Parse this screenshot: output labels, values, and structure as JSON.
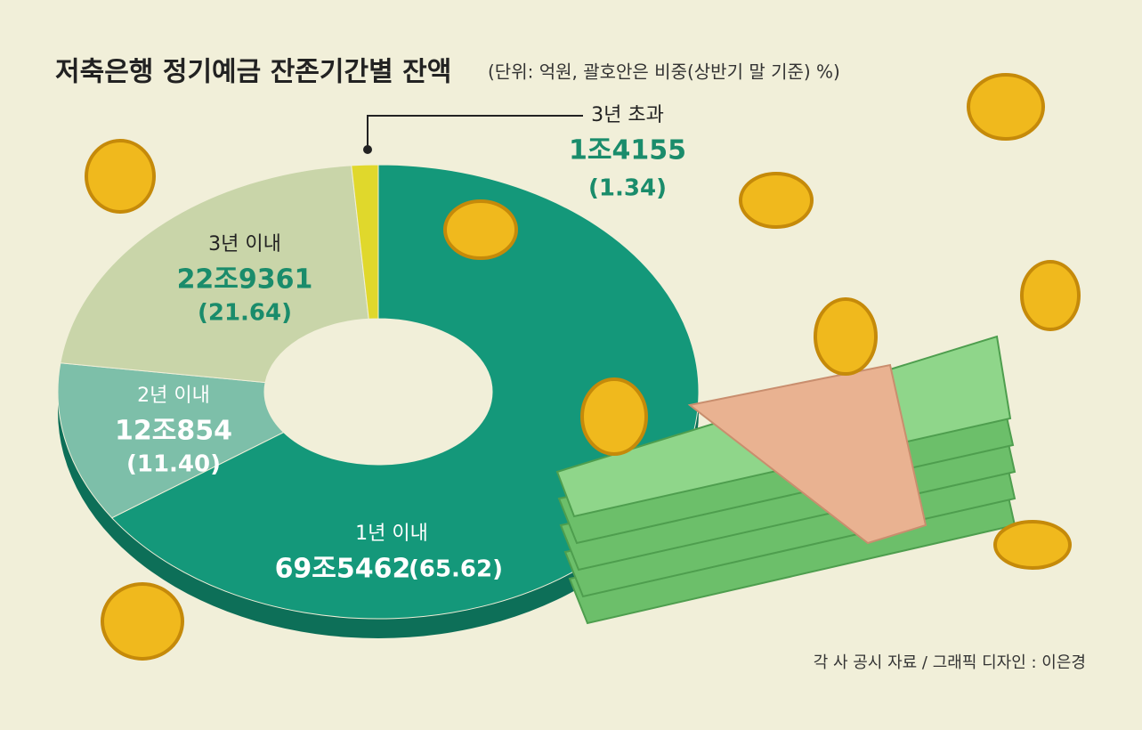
{
  "chart_data": {
    "type": "donut",
    "title": "저축은행 정기예금 잔존기간별 잔액",
    "subtitle": "(단위: 억원, 괄호안은 비중(상반기 말 기준) %)",
    "source": "각 사 공시 자료 / 그래픽 디자인 : 이은경",
    "categories": [
      "1년 이내",
      "2년 이내",
      "3년 이내",
      "3년 초과"
    ],
    "values": [
      65.62,
      11.4,
      21.64,
      1.34
    ],
    "value_labels": [
      "(65.62)",
      "(11.40)",
      "(21.64)",
      "(1.34)"
    ],
    "amounts": [
      695462,
      120854,
      229361,
      14155
    ],
    "amount_labels": [
      "69조5462",
      "12조854",
      "22조9361",
      "1조4155"
    ],
    "colors": [
      "#14987a",
      "#7dbfa9",
      "#c9d5a9",
      "#e0d82c"
    ]
  }
}
